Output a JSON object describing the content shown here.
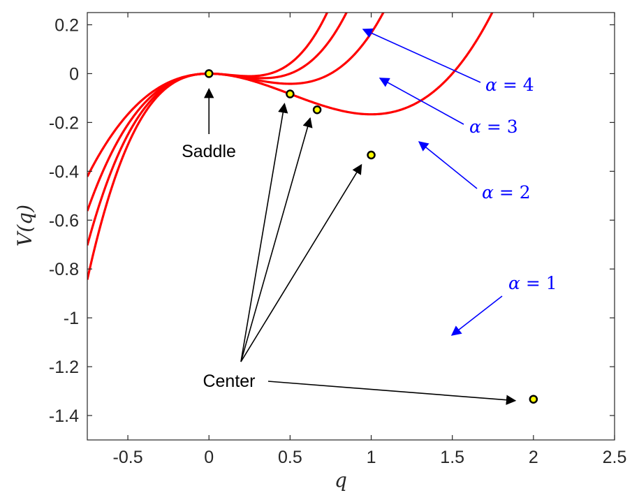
{
  "chart_data": {
    "type": "line",
    "xlabel": "q",
    "ylabel": "V(q)",
    "xlim": [
      -0.75,
      2.5
    ],
    "ylim": [
      -1.5,
      0.25
    ],
    "xticks": [
      -0.5,
      0,
      0.5,
      1,
      1.5,
      2,
      2.5
    ],
    "xtick_labels": [
      "-0.5",
      "0",
      "0.5",
      "1",
      "1.5",
      "2",
      "2.5"
    ],
    "yticks": [
      -1.4,
      -1.2,
      -1,
      -0.8,
      -0.6,
      -0.4,
      -0.2,
      0,
      0.2
    ],
    "ytick_labels": [
      "-1.4",
      "-1.2",
      "-1",
      "-0.8",
      "-0.6",
      "-0.4",
      "-0.2",
      "0",
      "0.2"
    ],
    "grid": false,
    "curve_color": "#ff0000",
    "label_color": "#0000ff",
    "marker_fill": "#ffff00",
    "series": [
      {
        "alpha": 1,
        "label_var": "α",
        "label_val": "1"
      },
      {
        "alpha": 2,
        "label_var": "α",
        "label_val": "2"
      },
      {
        "alpha": 3,
        "label_var": "α",
        "label_val": "3"
      },
      {
        "alpha": 4,
        "label_var": "α",
        "label_val": "4"
      }
    ],
    "equilibria": [
      {
        "type": "saddle",
        "x": 0,
        "y": 0
      },
      {
        "type": "center",
        "x": 2,
        "y": -1.3333
      },
      {
        "type": "center",
        "x": 1,
        "y": -0.3333
      },
      {
        "type": "center",
        "x": 0.6667,
        "y": -0.1481
      },
      {
        "type": "center",
        "x": 0.5,
        "y": -0.0833
      }
    ],
    "annotations": {
      "saddle": "Saddle",
      "center": "Center"
    }
  }
}
